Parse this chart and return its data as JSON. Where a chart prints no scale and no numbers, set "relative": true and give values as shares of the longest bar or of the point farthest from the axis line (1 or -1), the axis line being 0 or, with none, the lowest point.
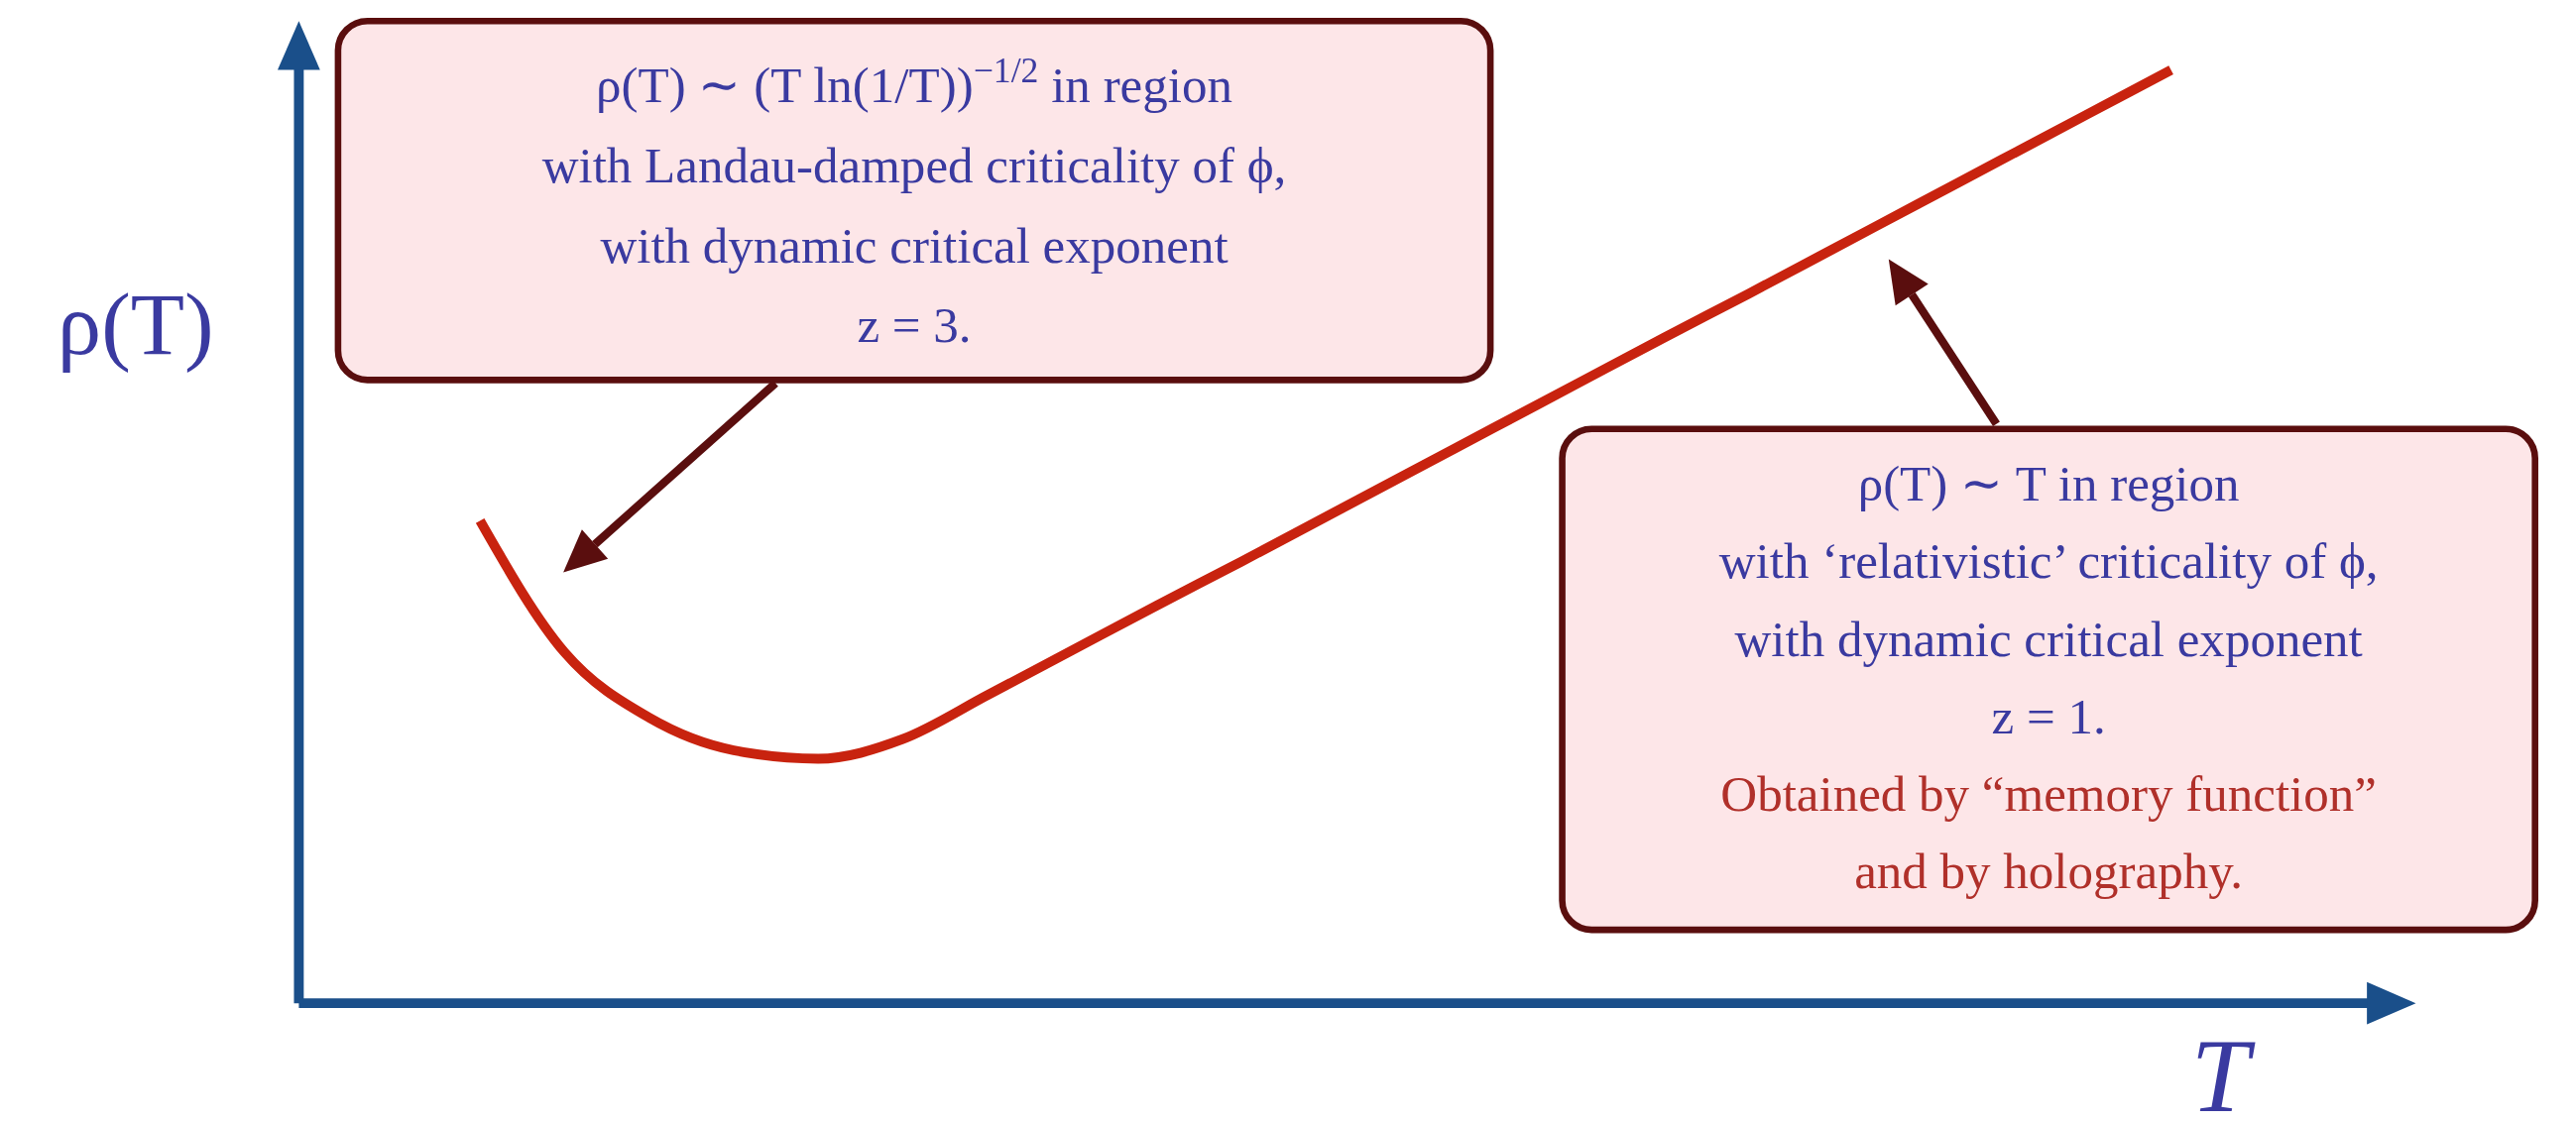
{
  "chart_data": {
    "type": "line",
    "relative": true,
    "xlabel": "T",
    "ylabel": "ρ(T)",
    "categories": [
      null,
      null,
      null,
      null,
      null,
      null,
      null,
      null,
      null,
      null,
      null,
      null,
      null,
      null,
      null,
      null,
      null,
      null,
      null,
      null,
      null
    ],
    "series": [
      {
        "color": "#c8230f",
        "values": [
          0.517,
          0.376,
          0.306,
          0.271,
          0.262,
          0.283,
          0.33,
          0.378,
          0.426,
          0.473,
          0.521,
          0.569,
          0.617,
          0.665,
          0.713,
          0.76,
          0.808,
          0.856,
          0.904,
          0.952,
          1
        ]
      }
    ],
    "annotations": [
      "ρ(T) ∼ (T ln(1/T))$^{−1/2}$ in region\nwith Landau-damped criticality of ϕ,\nwith dynamic critical exponent\nz = 3.",
      "ρ(T) ∼ T in region\nwith ‘relativistic’ criticality of ϕ,\nwith dynamic critical exponent\nz = 1.",
      "Obtained by “memory function”\nand by holography."
    ]
  }
}
